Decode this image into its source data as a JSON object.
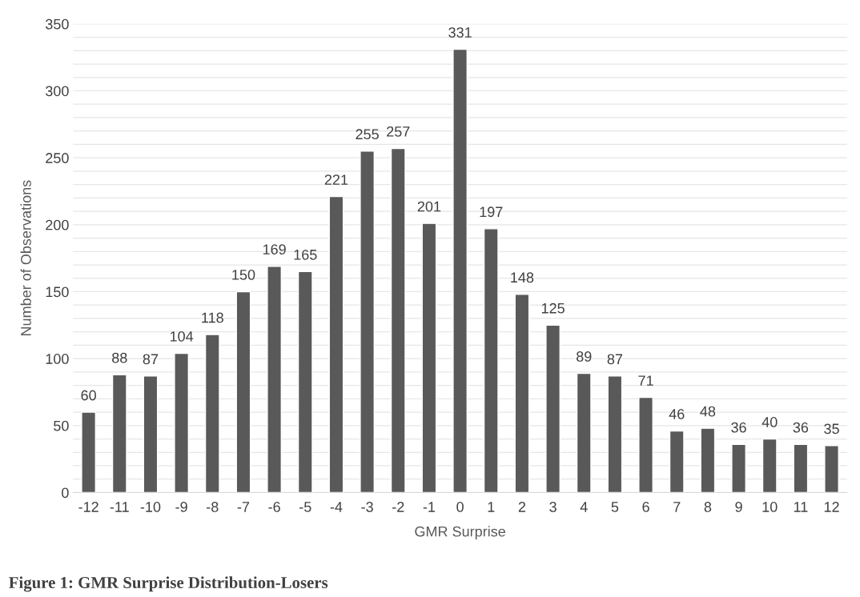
{
  "chart_data": {
    "type": "bar",
    "title": "Figure 1: GMR Surprise Distribution-Losers",
    "xlabel": "GMR Surprise",
    "ylabel": "Number of Observations",
    "categories": [
      "-12",
      "-11",
      "-10",
      "-9",
      "-8",
      "-7",
      "-6",
      "-5",
      "-4",
      "-3",
      "-2",
      "-1",
      "0",
      "1",
      "2",
      "3",
      "4",
      "5",
      "6",
      "7",
      "8",
      "9",
      "10",
      "11",
      "12"
    ],
    "values": [
      60,
      88,
      87,
      104,
      118,
      150,
      169,
      165,
      221,
      255,
      257,
      201,
      331,
      197,
      148,
      125,
      89,
      87,
      71,
      46,
      48,
      36,
      40,
      36,
      35
    ],
    "color": "#595959",
    "data_labels": true,
    "grid": "y",
    "legend": false,
    "ylim": [
      0,
      350
    ],
    "yticks": [
      0,
      {
        "value": 10,
        "label": null
      },
      {
        "value": 20,
        "label": null
      },
      {
        "value": 30,
        "label": null
      },
      {
        "value": 40,
        "label": null
      },
      50,
      {
        "value": 60,
        "label": null
      },
      {
        "value": 70,
        "label": null
      },
      {
        "value": 80,
        "label": null
      },
      {
        "value": 90,
        "label": null
      },
      100,
      {
        "value": 110,
        "label": null
      },
      {
        "value": 120,
        "label": null
      },
      {
        "value": 130,
        "label": null
      },
      {
        "value": 140,
        "label": null
      },
      150,
      {
        "value": 160,
        "label": null
      },
      {
        "value": 170,
        "label": null
      },
      {
        "value": 180,
        "label": null
      },
      {
        "value": 190,
        "label": null
      },
      200,
      {
        "value": 210,
        "label": null
      },
      {
        "value": 220,
        "label": null
      },
      {
        "value": 230,
        "label": null
      },
      {
        "value": 240,
        "label": null
      },
      250,
      {
        "value": 260,
        "label": null
      },
      {
        "value": 270,
        "label": null
      },
      {
        "value": 280,
        "label": null
      },
      {
        "value": 290,
        "label": null
      },
      300,
      {
        "value": 310,
        "label": null
      },
      {
        "value": 320,
        "label": null
      },
      {
        "value": 330,
        "label": null
      },
      {
        "value": 340,
        "label": null
      },
      350
    ]
  }
}
